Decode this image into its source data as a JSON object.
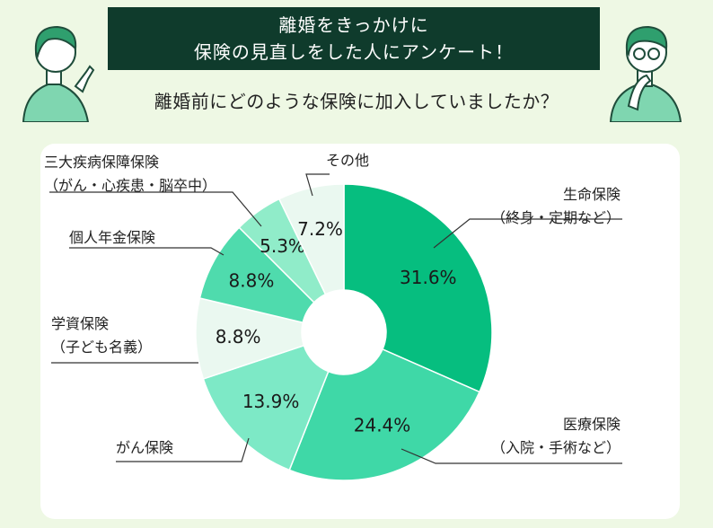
{
  "header": {
    "title_line1": "離婚をきっかけに",
    "title_line2": "保険の見直しをした人にアンケート！",
    "question": "離婚前にどのような保険に加入していましたか？"
  },
  "colors": {
    "banner": "#0f3b2c",
    "background": "#eef8e4",
    "life": "#06be7f",
    "medical": "#3fd8a7",
    "cancer": "#7de9c6",
    "education": "#eaf8f0",
    "annuity": "#4fdbad",
    "three_major": "#90ecc9",
    "other": "#eaf8f0"
  },
  "chart_data": {
    "type": "pie",
    "donut": true,
    "start": "top",
    "direction": "clockwise",
    "slices": [
      {
        "name": "生命保険",
        "sub": "（終身・定期など）",
        "value": 31.6,
        "label": "31.6%",
        "color": "#06be7f"
      },
      {
        "name": "医療保険",
        "sub": "（入院・手術など）",
        "value": 24.4,
        "label": "24.4%",
        "color": "#3fd8a7"
      },
      {
        "name": "がん保険",
        "sub": "",
        "value": 13.9,
        "label": "13.9%",
        "color": "#7de9c6"
      },
      {
        "name": "学資保険",
        "sub": "（子ども名義）",
        "value": 8.8,
        "label": "8.8%",
        "color": "#eaf8f0"
      },
      {
        "name": "個人年金保険",
        "sub": "",
        "value": 8.8,
        "label": "8.8%",
        "color": "#4fdbad"
      },
      {
        "name": "三大疾病保障保険",
        "sub": "（がん・心疾患・脳卒中）",
        "value": 5.3,
        "label": "5.3%",
        "color": "#90ecc9"
      },
      {
        "name": "その他",
        "sub": "",
        "value": 7.2,
        "label": "7.2%",
        "color": "#eaf8f0"
      }
    ]
  }
}
